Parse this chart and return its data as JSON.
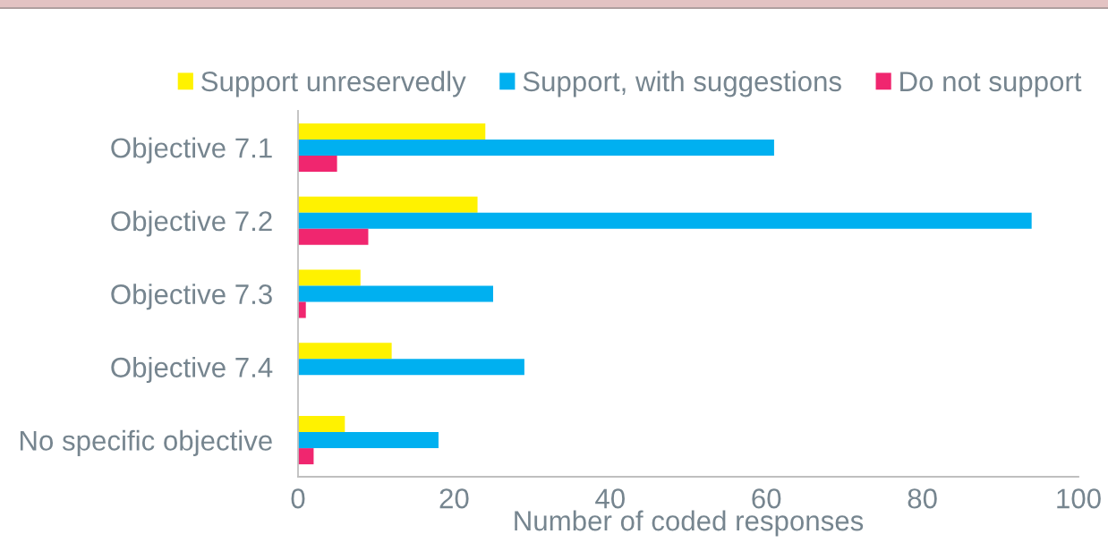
{
  "chart_data": {
    "type": "bar",
    "orientation": "horizontal",
    "categories": [
      "Objective 7.1",
      "Objective 7.2",
      "Objective 7.3",
      "Objective 7.4",
      "No specific objective"
    ],
    "series": [
      {
        "name": "Support unreservedly",
        "color": "#fff200",
        "values": [
          24,
          23,
          8,
          12,
          6
        ]
      },
      {
        "name": "Support, with suggestions",
        "color": "#00b0f0",
        "values": [
          61,
          94,
          25,
          29,
          18
        ]
      },
      {
        "name": "Do not support",
        "color": "#f0266f",
        "values": [
          5,
          9,
          1,
          0,
          2
        ]
      }
    ],
    "xlabel": "Number of coded responses",
    "xlim": [
      0,
      100
    ],
    "xticks": [
      0,
      20,
      40,
      60,
      80,
      100
    ],
    "legend": "top"
  }
}
